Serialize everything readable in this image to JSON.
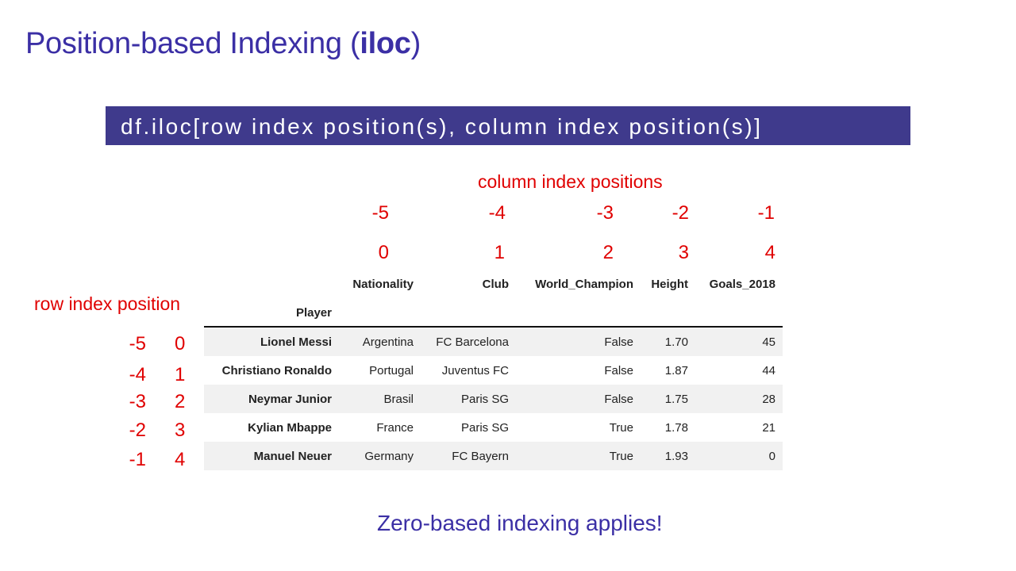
{
  "title": {
    "main": "Position-based Indexing (",
    "bold": "iloc",
    "close": ")"
  },
  "syntax": "df.iloc[row index position(s), column index position(s)]",
  "col_caption": "column index positions",
  "row_caption": "row index position",
  "col_negative": [
    "-5",
    "-4",
    "-3",
    "-2",
    "-1"
  ],
  "col_positive": [
    "0",
    "1",
    "2",
    "3",
    "4"
  ],
  "row_negative": [
    "-5",
    "-4",
    "-3",
    "-2",
    "-1"
  ],
  "row_positive": [
    "0",
    "1",
    "2",
    "3",
    "4"
  ],
  "table": {
    "index_name": "Player",
    "columns": [
      "Nationality",
      "Club",
      "World_Champion",
      "Height",
      "Goals_2018"
    ],
    "rows": [
      {
        "player": "Lionel Messi",
        "cells": [
          "Argentina",
          "FC Barcelona",
          "False",
          "1.70",
          "45"
        ]
      },
      {
        "player": "Christiano Ronaldo",
        "cells": [
          "Portugal",
          "Juventus FC",
          "False",
          "1.87",
          "44"
        ]
      },
      {
        "player": "Neymar Junior",
        "cells": [
          "Brasil",
          "Paris SG",
          "False",
          "1.75",
          "28"
        ]
      },
      {
        "player": "Kylian Mbappe",
        "cells": [
          "France",
          "Paris SG",
          "True",
          "1.78",
          "21"
        ]
      },
      {
        "player": "Manuel Neuer",
        "cells": [
          "Germany",
          "FC Bayern",
          "True",
          "1.93",
          "0"
        ]
      }
    ]
  },
  "footnote": "Zero-based indexing applies!"
}
